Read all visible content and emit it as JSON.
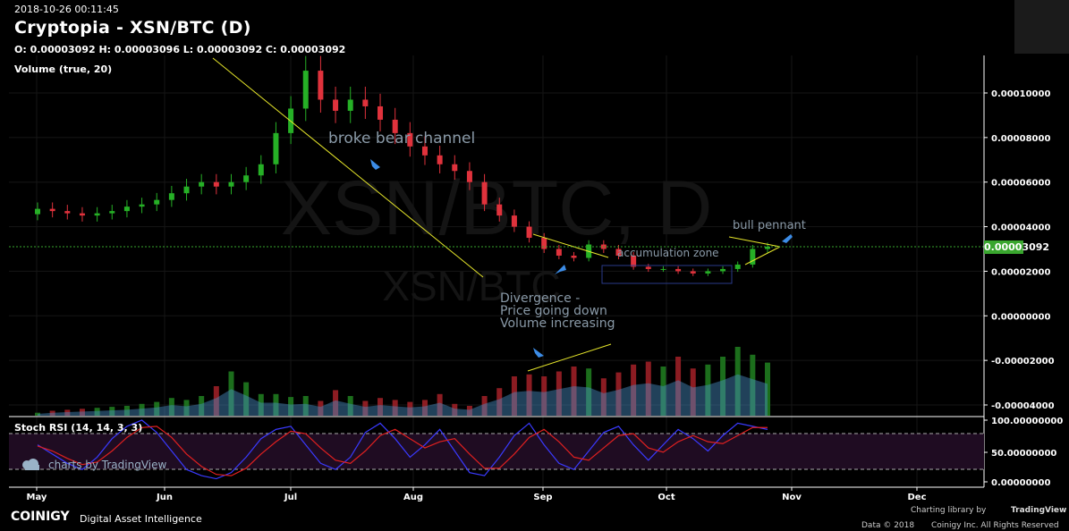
{
  "header": {
    "timestamp": "2018-10-26 00:11:45",
    "title": "Cryptopia - XSN/BTC (D)",
    "ohlc": "O: 0.00003092 H: 0.00003096 L: 0.00003092 C: 0.00003092",
    "volume_indicator": "Volume (true, 20)",
    "rsi_indicator": "Stoch RSI (14, 14, 3, 3)"
  },
  "watermark": {
    "big": "XSN/BTC, D",
    "small": "XSN/BTC"
  },
  "branding": {
    "tv_watermark": "charts by TradingView",
    "brand": "COINIGY",
    "tagline": "Digital Asset Intelligence",
    "charting_library": "Charting library by",
    "tradingview": "TradingView",
    "data_credit": "Data © 2018",
    "coinigy_credit": "Coinigy Inc. All Rights Reserved"
  },
  "price_tag": "0.00003092",
  "colors": {
    "up": "#26b026",
    "down": "#e0323c",
    "trend": "#e6e62a",
    "annot": "#8a9aa8",
    "arrow": "#3c8ce6",
    "current": "#39a62e"
  },
  "annotations": {
    "broke_bear_channel": "broke bear channel",
    "bull_pennant": "bull pennant",
    "accumulation_zone": "accumulation zone",
    "divergence_1": "Divergence -",
    "divergence_2": "Price going down",
    "divergence_3": "Volume increasing"
  },
  "chart_data": {
    "type": "candlestick",
    "x_ticks": [
      "May",
      "Jun",
      "Jul",
      "Aug",
      "Sep",
      "Oct",
      "Nov",
      "Dec"
    ],
    "y_ticks": [
      "0.00010000",
      "0.00008000",
      "0.00006000",
      "0.00004000",
      "0.00002000",
      "0.00000000",
      "-0.00002000",
      "-0.00004000"
    ],
    "rsi_ticks": [
      "100.00000000",
      "50.00000000",
      "0.00000000"
    ],
    "price_range": [
      -4e-05,
      0.0001
    ],
    "current_price": 3.092e-05,
    "close_by_period": [
      4.8e-05,
      4.7e-05,
      4.6e-05,
      4.5e-05,
      4.6e-05,
      4.7e-05,
      4.9e-05,
      5e-05,
      5.2e-05,
      5.5e-05,
      5.8e-05,
      6e-05,
      5.8e-05,
      6e-05,
      6.3e-05,
      6.8e-05,
      8.2e-05,
      9.3e-05,
      0.00011,
      9.7e-05,
      9.2e-05,
      9.7e-05,
      9.4e-05,
      8.8e-05,
      8.2e-05,
      7.6e-05,
      7.2e-05,
      6.8e-05,
      6.5e-05,
      6e-05,
      5e-05,
      4.5e-05,
      4e-05,
      3.5e-05,
      3e-05,
      2.7e-05,
      2.6e-05,
      3.2e-05,
      3e-05,
      2.7e-05,
      2.2e-05,
      2.1e-05,
      2.1e-05,
      2e-05,
      1.9e-05,
      2e-05,
      2.1e-05,
      2.3e-05,
      3e-05,
      3.1e-05
    ],
    "volume_by_period": [
      0.03,
      0.05,
      0.06,
      0.07,
      0.08,
      0.09,
      0.1,
      0.12,
      0.14,
      0.18,
      0.16,
      0.2,
      0.3,
      0.45,
      0.34,
      0.22,
      0.22,
      0.19,
      0.2,
      0.15,
      0.26,
      0.2,
      0.15,
      0.18,
      0.16,
      0.14,
      0.16,
      0.22,
      0.12,
      0.1,
      0.2,
      0.28,
      0.4,
      0.42,
      0.4,
      0.45,
      0.5,
      0.48,
      0.38,
      0.44,
      0.52,
      0.55,
      0.5,
      0.6,
      0.48,
      0.52,
      0.6,
      0.7,
      0.62,
      0.54
    ],
    "stoch_rsi_k": [
      60,
      45,
      30,
      20,
      40,
      70,
      90,
      100,
      80,
      50,
      20,
      10,
      5,
      15,
      40,
      70,
      85,
      90,
      60,
      30,
      20,
      40,
      80,
      95,
      70,
      40,
      60,
      85,
      50,
      15,
      10,
      40,
      75,
      95,
      60,
      30,
      20,
      50,
      80,
      90,
      60,
      35,
      60,
      85,
      70,
      50,
      75,
      95,
      90,
      85
    ],
    "stoch_rsi_d": [
      58,
      50,
      38,
      28,
      32,
      50,
      72,
      88,
      90,
      72,
      45,
      25,
      12,
      10,
      22,
      45,
      65,
      82,
      78,
      55,
      35,
      30,
      50,
      75,
      85,
      70,
      55,
      65,
      70,
      45,
      22,
      22,
      45,
      72,
      85,
      65,
      40,
      35,
      55,
      75,
      78,
      55,
      48,
      65,
      75,
      65,
      62,
      75,
      88,
      88
    ]
  }
}
